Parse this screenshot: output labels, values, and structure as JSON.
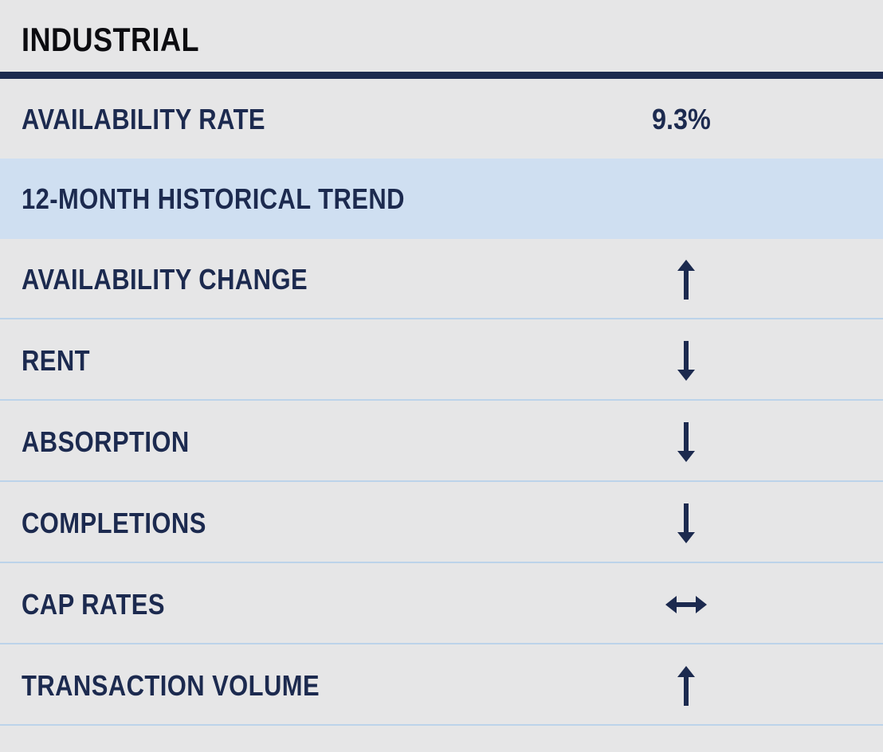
{
  "title": "INDUSTRIAL",
  "availability": {
    "label": "AVAILABILITY RATE",
    "value": "9.3%"
  },
  "trend_heading": "12-MONTH HISTORICAL TREND",
  "trends": [
    {
      "label": "AVAILABILITY CHANGE",
      "direction": "up",
      "icon": "arrow-up-icon"
    },
    {
      "label": "RENT",
      "direction": "down",
      "icon": "arrow-down-icon"
    },
    {
      "label": "ABSORPTION",
      "direction": "down",
      "icon": "arrow-down-icon"
    },
    {
      "label": "COMPLETIONS",
      "direction": "down",
      "icon": "arrow-down-icon"
    },
    {
      "label": "CAP RATES",
      "direction": "flat",
      "icon": "arrow-left-right-icon"
    },
    {
      "label": "TRANSACTION VOLUME",
      "direction": "up",
      "icon": "arrow-up-icon"
    }
  ],
  "colors": {
    "navy": "#1c2a4f",
    "background": "#e6e6e7",
    "band": "#cfdff1",
    "divider": "#bcd3ea"
  }
}
